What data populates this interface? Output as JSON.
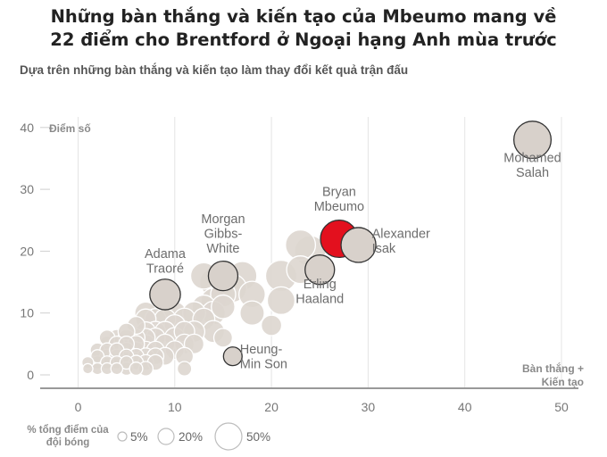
{
  "title_lines": [
    "Những bàn thắng và kiến tạo của Mbeumo mang về",
    "22 điểm cho Brentford ở Ngoại hạng Anh mùa trước"
  ],
  "subtitle": "Dựa trên những bàn thắng và kiến tạo làm thay đổi kết quả trận đấu",
  "chart_data": {
    "type": "scatter",
    "ylabel": "Điểm số",
    "xlabel_lines": [
      "Bàn thắng +",
      "Kiến tạo"
    ],
    "xlim": [
      0,
      52
    ],
    "ylim": [
      -2,
      42
    ],
    "xticks": [
      0,
      10,
      20,
      30,
      40,
      50
    ],
    "yticks": [
      0,
      10,
      20,
      30,
      40
    ],
    "grid": "vertical",
    "size_legend": {
      "title_lines": [
        "% tổng điểm của",
        "đội bóng"
      ],
      "items": [
        {
          "label": "5%",
          "pct": 5
        },
        {
          "label": "20%",
          "pct": 20
        },
        {
          "label": "50%",
          "pct": 50
        }
      ]
    },
    "highlighted": [
      {
        "label_lines": [
          "Mohamed",
          "Salah"
        ],
        "x": 47,
        "y": 38,
        "pct": 40,
        "color": "#d8d1cb"
      },
      {
        "label_lines": [
          "Bryan",
          "Mbeumo"
        ],
        "x": 27,
        "y": 22,
        "pct": 40,
        "color": "#e3101e"
      },
      {
        "label_lines": [
          "Alexander",
          "Isak"
        ],
        "x": 29,
        "y": 21,
        "pct": 35,
        "color": "#d8d1cb"
      },
      {
        "label_lines": [
          "Erling",
          "Haaland"
        ],
        "x": 25,
        "y": 17,
        "pct": 25,
        "color": "#d8d1cb"
      },
      {
        "label_lines": [
          "Morgan",
          "Gibbs-",
          "White"
        ],
        "x": 15,
        "y": 16,
        "pct": 25,
        "color": "#d8d1cb"
      },
      {
        "label_lines": [
          "Adama",
          "Traoré"
        ],
        "x": 9,
        "y": 13,
        "pct": 27,
        "color": "#d8d1cb"
      },
      {
        "label_lines": [
          "Heung-",
          "Min Son"
        ],
        "x": 16,
        "y": 3,
        "pct": 10,
        "color": "#d8d1cb"
      }
    ],
    "others": [
      {
        "x": 1,
        "y": 1,
        "pct": 3
      },
      {
        "x": 1,
        "y": 2,
        "pct": 4
      },
      {
        "x": 2,
        "y": 1,
        "pct": 4
      },
      {
        "x": 2,
        "y": 2,
        "pct": 5
      },
      {
        "x": 2,
        "y": 3,
        "pct": 5
      },
      {
        "x": 2,
        "y": 4,
        "pct": 6
      },
      {
        "x": 3,
        "y": 1,
        "pct": 4
      },
      {
        "x": 3,
        "y": 2,
        "pct": 5
      },
      {
        "x": 3,
        "y": 3,
        "pct": 6
      },
      {
        "x": 3,
        "y": 4,
        "pct": 6
      },
      {
        "x": 3,
        "y": 5,
        "pct": 7
      },
      {
        "x": 3,
        "y": 6,
        "pct": 7
      },
      {
        "x": 4,
        "y": 1,
        "pct": 4
      },
      {
        "x": 4,
        "y": 2,
        "pct": 5
      },
      {
        "x": 4,
        "y": 3,
        "pct": 6
      },
      {
        "x": 4,
        "y": 4,
        "pct": 6
      },
      {
        "x": 4,
        "y": 5,
        "pct": 7
      },
      {
        "x": 4,
        "y": 6,
        "pct": 8
      },
      {
        "x": 5,
        "y": 1,
        "pct": 5
      },
      {
        "x": 5,
        "y": 2,
        "pct": 5
      },
      {
        "x": 5,
        "y": 3,
        "pct": 6
      },
      {
        "x": 5,
        "y": 4,
        "pct": 7
      },
      {
        "x": 5,
        "y": 5,
        "pct": 7
      },
      {
        "x": 5,
        "y": 6,
        "pct": 8
      },
      {
        "x": 5,
        "y": 7,
        "pct": 8
      },
      {
        "x": 6,
        "y": 1,
        "pct": 5
      },
      {
        "x": 6,
        "y": 2,
        "pct": 6
      },
      {
        "x": 6,
        "y": 3,
        "pct": 7
      },
      {
        "x": 6,
        "y": 4,
        "pct": 8
      },
      {
        "x": 6,
        "y": 5,
        "pct": 8
      },
      {
        "x": 6,
        "y": 6,
        "pct": 9
      },
      {
        "x": 6,
        "y": 8,
        "pct": 9
      },
      {
        "x": 7,
        "y": 1,
        "pct": 6
      },
      {
        "x": 7,
        "y": 2,
        "pct": 7
      },
      {
        "x": 7,
        "y": 3,
        "pct": 8
      },
      {
        "x": 7,
        "y": 4,
        "pct": 9
      },
      {
        "x": 7,
        "y": 5,
        "pct": 10
      },
      {
        "x": 7,
        "y": 6,
        "pct": 10
      },
      {
        "x": 7,
        "y": 7,
        "pct": 11
      },
      {
        "x": 7,
        "y": 9,
        "pct": 12
      },
      {
        "x": 7,
        "y": 10,
        "pct": 14
      },
      {
        "x": 8,
        "y": 2,
        "pct": 7
      },
      {
        "x": 8,
        "y": 3,
        "pct": 8
      },
      {
        "x": 8,
        "y": 4,
        "pct": 9
      },
      {
        "x": 8,
        "y": 6,
        "pct": 11
      },
      {
        "x": 8,
        "y": 7,
        "pct": 12
      },
      {
        "x": 8,
        "y": 9,
        "pct": 13
      },
      {
        "x": 9,
        "y": 3,
        "pct": 9
      },
      {
        "x": 9,
        "y": 5,
        "pct": 11
      },
      {
        "x": 9,
        "y": 7,
        "pct": 12
      },
      {
        "x": 9,
        "y": 9,
        "pct": 13
      },
      {
        "x": 10,
        "y": 4,
        "pct": 10
      },
      {
        "x": 10,
        "y": 6,
        "pct": 12
      },
      {
        "x": 10,
        "y": 8,
        "pct": 13
      },
      {
        "x": 10,
        "y": 10,
        "pct": 15
      },
      {
        "x": 11,
        "y": 1,
        "pct": 6
      },
      {
        "x": 11,
        "y": 3,
        "pct": 9
      },
      {
        "x": 11,
        "y": 5,
        "pct": 11
      },
      {
        "x": 11,
        "y": 7,
        "pct": 12
      },
      {
        "x": 11,
        "y": 9,
        "pct": 14
      },
      {
        "x": 12,
        "y": 5,
        "pct": 11
      },
      {
        "x": 12,
        "y": 7,
        "pct": 13
      },
      {
        "x": 12,
        "y": 10,
        "pct": 15
      },
      {
        "x": 13,
        "y": 9,
        "pct": 14
      },
      {
        "x": 13,
        "y": 11,
        "pct": 16
      },
      {
        "x": 13,
        "y": 16,
        "pct": 20
      },
      {
        "x": 14,
        "y": 7,
        "pct": 14
      },
      {
        "x": 14,
        "y": 10,
        "pct": 16
      },
      {
        "x": 14,
        "y": 12,
        "pct": 18
      },
      {
        "x": 14,
        "y": 15,
        "pct": 22
      },
      {
        "x": 15,
        "y": 11,
        "pct": 16
      },
      {
        "x": 15,
        "y": 13,
        "pct": 18
      },
      {
        "x": 16,
        "y": 14,
        "pct": 22
      },
      {
        "x": 17,
        "y": 16,
        "pct": 24
      },
      {
        "x": 18,
        "y": 10,
        "pct": 17
      },
      {
        "x": 18,
        "y": 13,
        "pct": 20
      },
      {
        "x": 20,
        "y": 8,
        "pct": 12
      },
      {
        "x": 21,
        "y": 12,
        "pct": 22
      },
      {
        "x": 21,
        "y": 16,
        "pct": 28
      },
      {
        "x": 23,
        "y": 17,
        "pct": 22
      },
      {
        "x": 23,
        "y": 21,
        "pct": 26
      },
      {
        "x": 24,
        "y": 20,
        "pct": 28
      },
      {
        "x": 15,
        "y": 6,
        "pct": 10
      }
    ]
  }
}
